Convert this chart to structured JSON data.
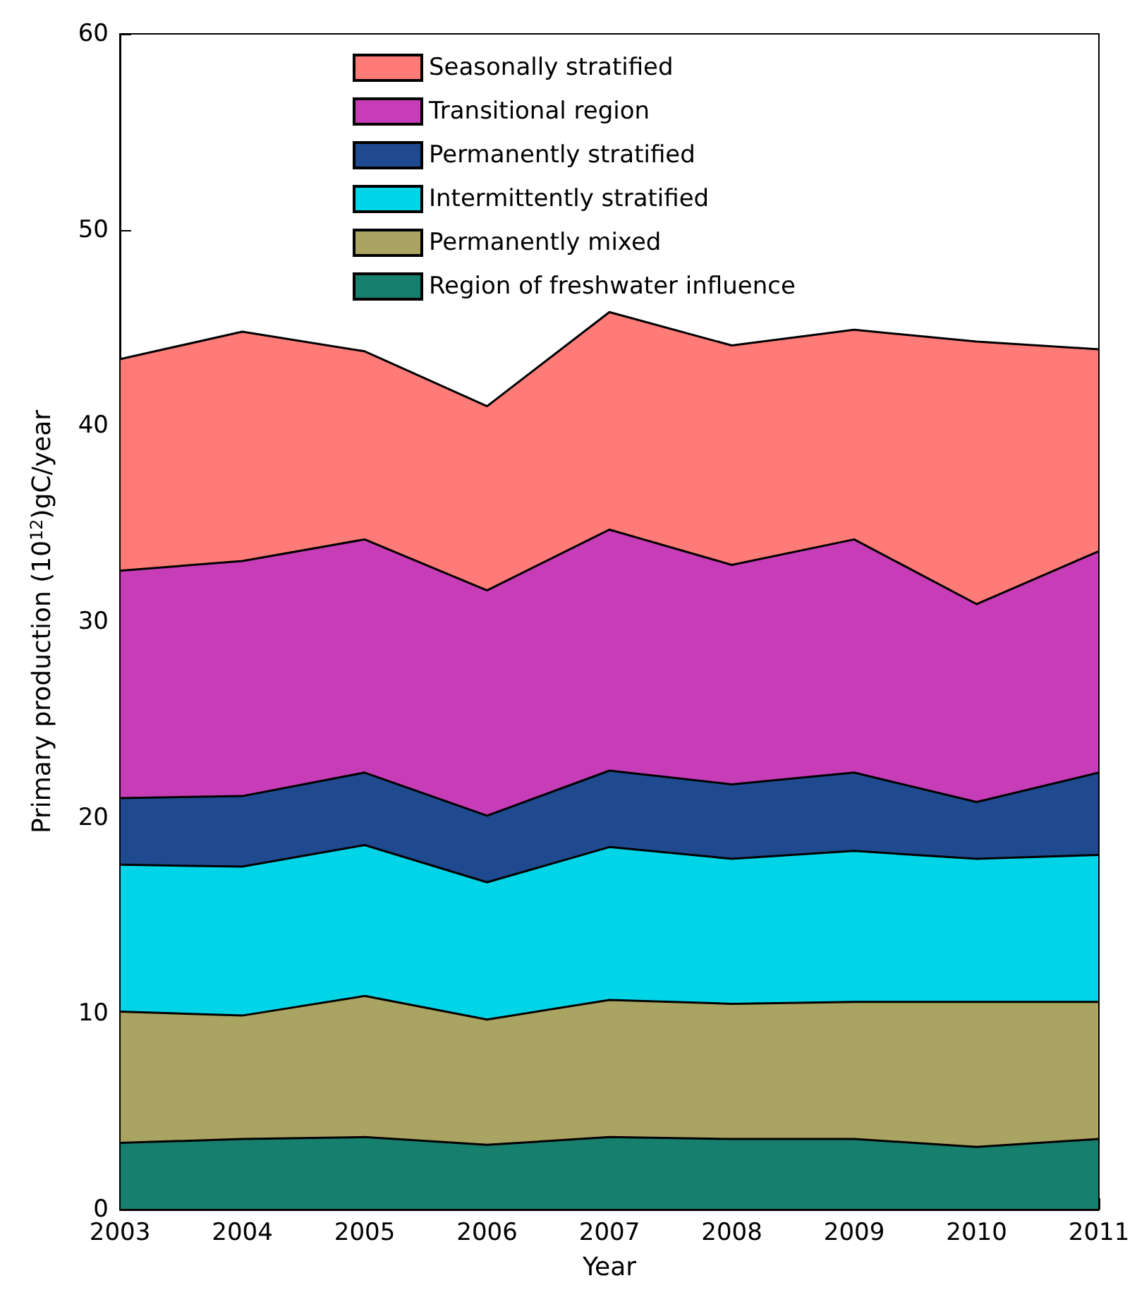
{
  "chart_data": {
    "type": "area",
    "stacked": true,
    "xlabel": "Year",
    "ylabel": "Primary production (10$^{12}$)gC/year",
    "x": [
      2003,
      2004,
      2005,
      2006,
      2007,
      2008,
      2009,
      2010,
      2011
    ],
    "xlim": [
      2003,
      2011
    ],
    "xticks": [
      2003,
      2004,
      2005,
      2006,
      2007,
      2008,
      2009,
      2010,
      2011
    ],
    "ylim": [
      0,
      60
    ],
    "yticks": [
      0,
      10,
      20,
      30,
      40,
      50,
      60
    ],
    "grid": false,
    "legend": "top",
    "marker": "none",
    "line_style": "solid",
    "series": [
      {
        "name": "Region of freshwater influence",
        "color": "#167f6e",
        "values": [
          3.4,
          3.6,
          3.7,
          3.3,
          3.7,
          3.6,
          3.6,
          3.2,
          3.6
        ]
      },
      {
        "name": "Permanently mixed",
        "color": "#aaa462",
        "values": [
          6.7,
          6.3,
          7.2,
          6.4,
          7.0,
          6.9,
          7.0,
          7.4,
          7.0
        ]
      },
      {
        "name": "Intermittently stratified",
        "color": "#00d5e8",
        "values": [
          7.5,
          7.6,
          7.7,
          7.0,
          7.8,
          7.4,
          7.7,
          7.3,
          7.5
        ]
      },
      {
        "name": "Permanently stratified",
        "color": "#1f4a8f",
        "values": [
          3.4,
          3.6,
          3.7,
          3.4,
          3.9,
          3.8,
          4.0,
          2.9,
          4.2
        ]
      },
      {
        "name": "Transitional region",
        "color": "#c73db8",
        "values": [
          11.6,
          12.0,
          11.9,
          11.5,
          12.3,
          11.2,
          11.9,
          10.1,
          11.3
        ]
      },
      {
        "name": "Seasonally stratified",
        "color": "#fe7b78",
        "values": [
          10.8,
          11.7,
          9.6,
          9.4,
          11.1,
          11.2,
          10.7,
          13.4,
          10.3
        ]
      }
    ]
  }
}
